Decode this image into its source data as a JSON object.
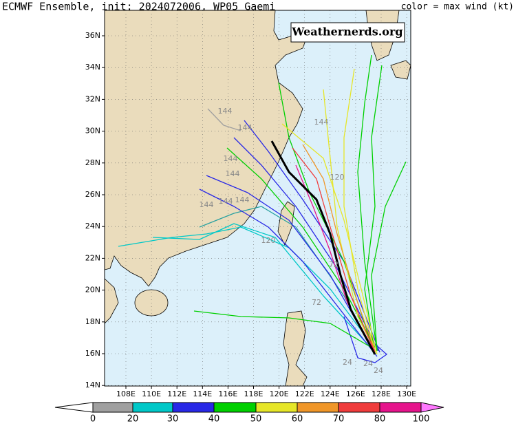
{
  "header": {
    "title": "ECMWF Ensemble, init: 2024072006, WP05 Gaemi",
    "legend_note": "color = max wind (kt)"
  },
  "watermark": "Weathernerds.org",
  "map": {
    "lon_labels": [
      "108E",
      "110E",
      "112E",
      "114E",
      "116E",
      "118E",
      "120E",
      "122E",
      "124E",
      "126E",
      "128E",
      "130E"
    ],
    "lat_labels": [
      "36N",
      "34N",
      "32N",
      "30N",
      "28N",
      "26N",
      "24N",
      "22N",
      "20N",
      "18N",
      "16N",
      "14N"
    ],
    "hour_labels": [
      "144",
      "144",
      "144",
      "144",
      "144",
      "144",
      "144",
      "144",
      "120",
      "120",
      "72",
      "72",
      "24",
      "24",
      "24"
    ]
  },
  "colorbar": {
    "labels": [
      0,
      20,
      30,
      40,
      50,
      60,
      70,
      80,
      100
    ],
    "colors": [
      "#ffffff",
      "#a0a0a0",
      "#00c8c8",
      "#2828e6",
      "#00d000",
      "#e6e628",
      "#f09628",
      "#f03c3c",
      "#e6148c",
      "#ff78ff"
    ]
  }
}
